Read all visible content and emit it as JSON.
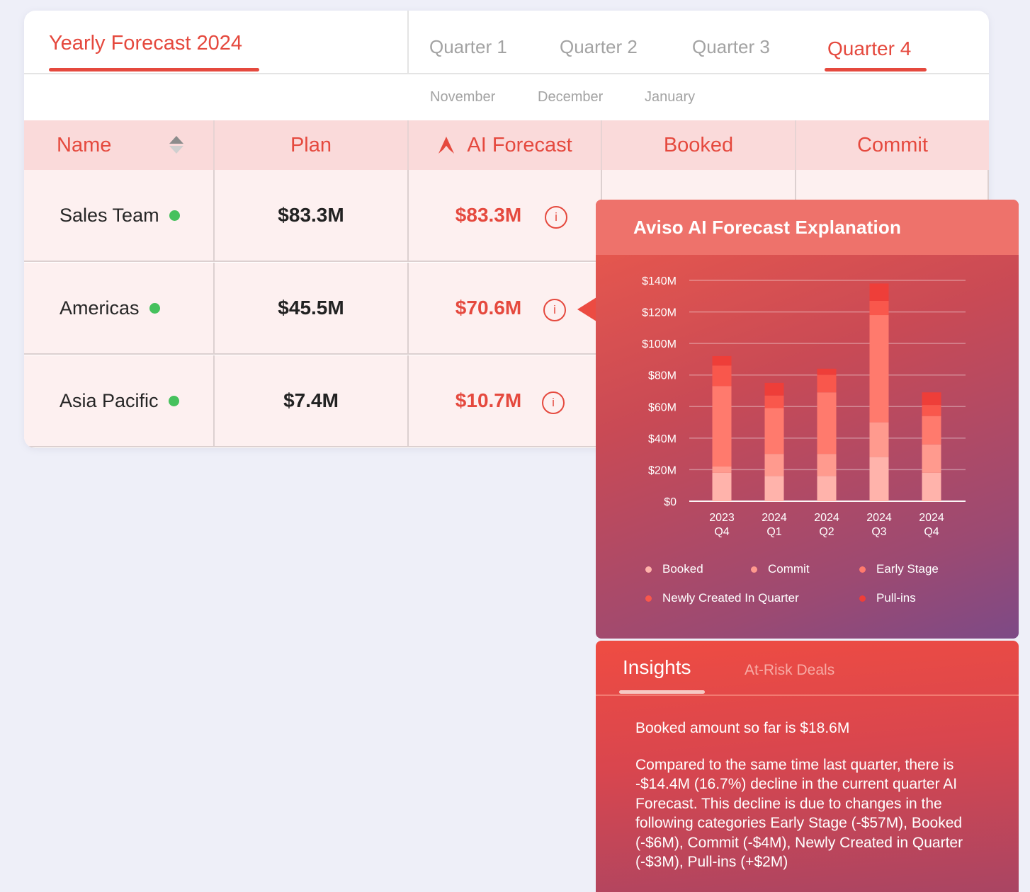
{
  "tabs": {
    "yearly": "Yearly Forecast 2024",
    "quarters": [
      "Quarter 1",
      "Quarter 2",
      "Quarter 3",
      "Quarter 4"
    ],
    "active_quarter": "Quarter 4",
    "months": [
      "November",
      "December",
      "January"
    ]
  },
  "table": {
    "headers": {
      "name": "Name",
      "plan": "Plan",
      "ai_forecast": "AI Forecast",
      "booked": "Booked",
      "commit": "Commit"
    },
    "rows": [
      {
        "name": "Sales Team",
        "status": "active",
        "plan": "$83.3M",
        "ai_forecast": "$83.3M"
      },
      {
        "name": "Americas",
        "status": "active",
        "plan": "$45.5M",
        "ai_forecast": "$70.6M"
      },
      {
        "name": "Asia Pacific",
        "status": "active",
        "plan": "$7.4M",
        "ai_forecast": "$10.7M"
      }
    ],
    "info_icon": "i"
  },
  "popup": {
    "title": "Aviso AI Forecast Explanation"
  },
  "colors": {
    "accent": "#e5493e",
    "status_green": "#46c15d",
    "booked": "#ffb3ab",
    "commit": "#ff9a8e",
    "early_stage": "#ff7a6d",
    "newly_created": "#f9574c",
    "pull_ins": "#ee3e39"
  },
  "chart_data": {
    "type": "bar",
    "stacked": true,
    "categories": [
      [
        "2023",
        "Q4"
      ],
      [
        "2024",
        "Q1"
      ],
      [
        "2024",
        "Q2"
      ],
      [
        "2024",
        "Q3"
      ],
      [
        "2024",
        "Q4"
      ]
    ],
    "series": [
      {
        "name": "Booked",
        "values": [
          18,
          16,
          16,
          28,
          18
        ]
      },
      {
        "name": "Commit",
        "values": [
          4,
          14,
          14,
          22,
          18
        ]
      },
      {
        "name": "Early Stage",
        "values": [
          51,
          29,
          39,
          68,
          18
        ]
      },
      {
        "name": "Newly Created In Quarter",
        "values": [
          13,
          8,
          11,
          9,
          7
        ]
      },
      {
        "name": "Pull-ins",
        "values": [
          6,
          8,
          4,
          11,
          8
        ]
      }
    ],
    "yticks": [
      "$0",
      "$20M",
      "$40M",
      "$60M",
      "$80M",
      "$100M",
      "$120M",
      "$140M"
    ],
    "ylim": [
      0,
      140
    ],
    "grid": true,
    "legend_position": "bottom"
  },
  "insights": {
    "tabs": [
      "Insights",
      "At-Risk Deals"
    ],
    "paragraphs": [
      "Booked amount so far is $18.6M",
      "Compared to the same time last quarter, there is -$14.4M (16.7%) decline in the current quarter AI Forecast. This decline is due to changes in the following categories  Early Stage (-$57M), Booked (-$6M), Commit (-$4M), Newly Created in Quarter (-$3M), Pull-ins (+$2M)"
    ]
  }
}
